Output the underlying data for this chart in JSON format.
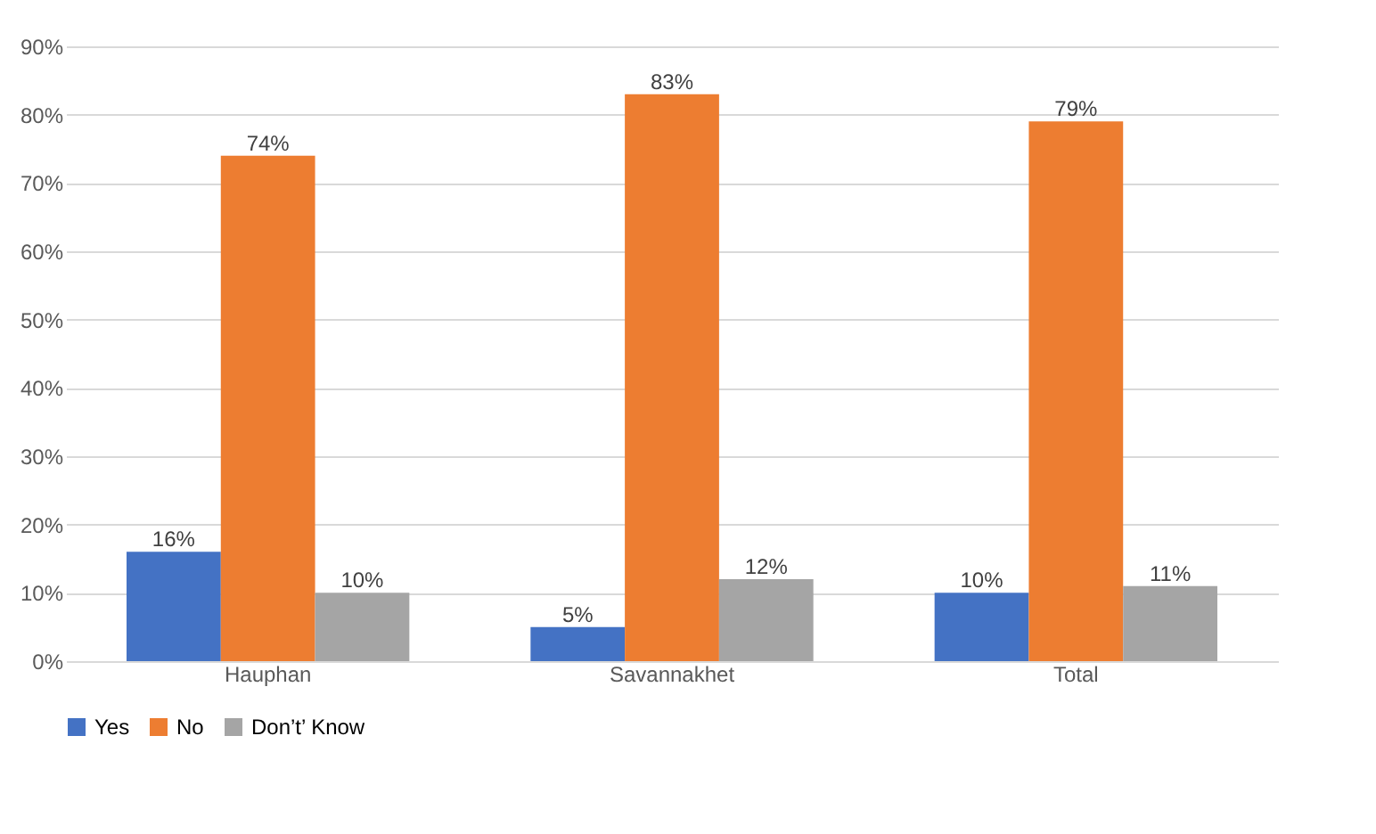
{
  "chart_data": {
    "type": "bar",
    "categories": [
      "Hauphan",
      "Savannakhet",
      "Total"
    ],
    "series": [
      {
        "name": "Yes",
        "color": "#4472c4",
        "values": [
          16,
          5,
          10
        ],
        "value_labels": [
          "16%",
          "5%",
          "10%"
        ]
      },
      {
        "name": "No",
        "color": "#ed7d31",
        "values": [
          74,
          83,
          79
        ],
        "value_labels": [
          "74%",
          "83%",
          "79%"
        ]
      },
      {
        "name": "Don’t’ Know",
        "color": "#a5a5a5",
        "values": [
          10,
          12,
          11
        ],
        "value_labels": [
          "10%",
          "12%",
          "11%"
        ]
      }
    ],
    "ylim": [
      0,
      90
    ],
    "yticks": [
      {
        "value": 0,
        "label": "0%"
      },
      {
        "value": 10,
        "label": "10%"
      },
      {
        "value": 20,
        "label": "20%"
      },
      {
        "value": 30,
        "label": "30%"
      },
      {
        "value": 40,
        "label": "40%"
      },
      {
        "value": 50,
        "label": "50%"
      },
      {
        "value": 60,
        "label": "60%"
      },
      {
        "value": 70,
        "label": "70%"
      },
      {
        "value": 80,
        "label": "80%"
      },
      {
        "value": 90,
        "label": "90%"
      }
    ],
    "grid": "y",
    "legend": "bottom"
  }
}
